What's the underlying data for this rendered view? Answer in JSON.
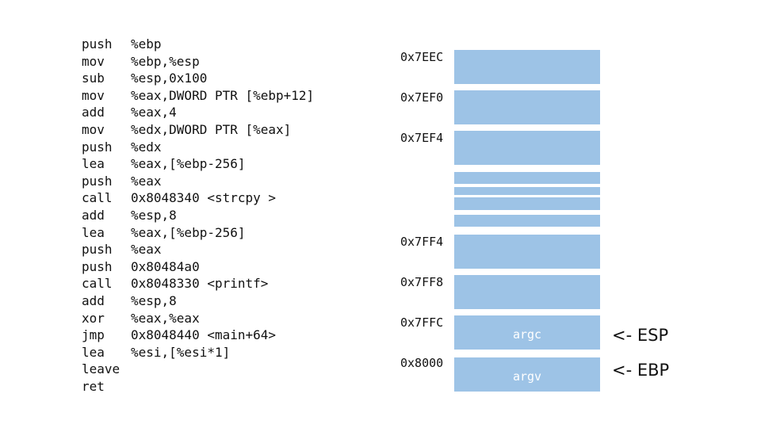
{
  "assembly": [
    {
      "op": "push",
      "args": "%ebp"
    },
    {
      "op": "mov",
      "args": "%ebp,%esp"
    },
    {
      "op": "sub",
      "args": "%esp,0x100"
    },
    {
      "op": "mov",
      "args": "%eax,DWORD PTR [%ebp+12]"
    },
    {
      "op": "add",
      "args": "%eax,4"
    },
    {
      "op": "mov",
      "args": "%edx,DWORD PTR [%eax]"
    },
    {
      "op": "push",
      "args": "%edx"
    },
    {
      "op": "lea",
      "args": "%eax,[%ebp-256]"
    },
    {
      "op": "push",
      "args": "%eax"
    },
    {
      "op": "call",
      "args": "0x8048340 <strcpy >"
    },
    {
      "op": "add",
      "args": "%esp,8"
    },
    {
      "op": "lea",
      "args": "%eax,[%ebp-256]"
    },
    {
      "op": "push",
      "args": "%eax"
    },
    {
      "op": "push",
      "args": "0x80484a0"
    },
    {
      "op": "call",
      "args": "0x8048330 <printf>"
    },
    {
      "op": "add",
      "args": "%esp,8"
    },
    {
      "op": "xor",
      "args": "%eax,%eax"
    },
    {
      "op": "jmp",
      "args": "0x8048440 <main+64>"
    },
    {
      "op": "lea",
      "args": "%esi,[%esi*1]"
    },
    {
      "op": "leave",
      "args": ""
    },
    {
      "op": "ret",
      "args": ""
    }
  ],
  "stack": {
    "addresses": [
      "0x7EEC",
      "0x7EF0",
      "0x7EF4",
      "0x7FF4",
      "0x7FF8",
      "0x7FFC",
      "0x8000"
    ],
    "labels": {
      "argc": "argc",
      "argv": "argv"
    },
    "pointers": {
      "esp": "<- ESP",
      "ebp": "<- EBP"
    },
    "cell_color": "#9dc3e6"
  }
}
